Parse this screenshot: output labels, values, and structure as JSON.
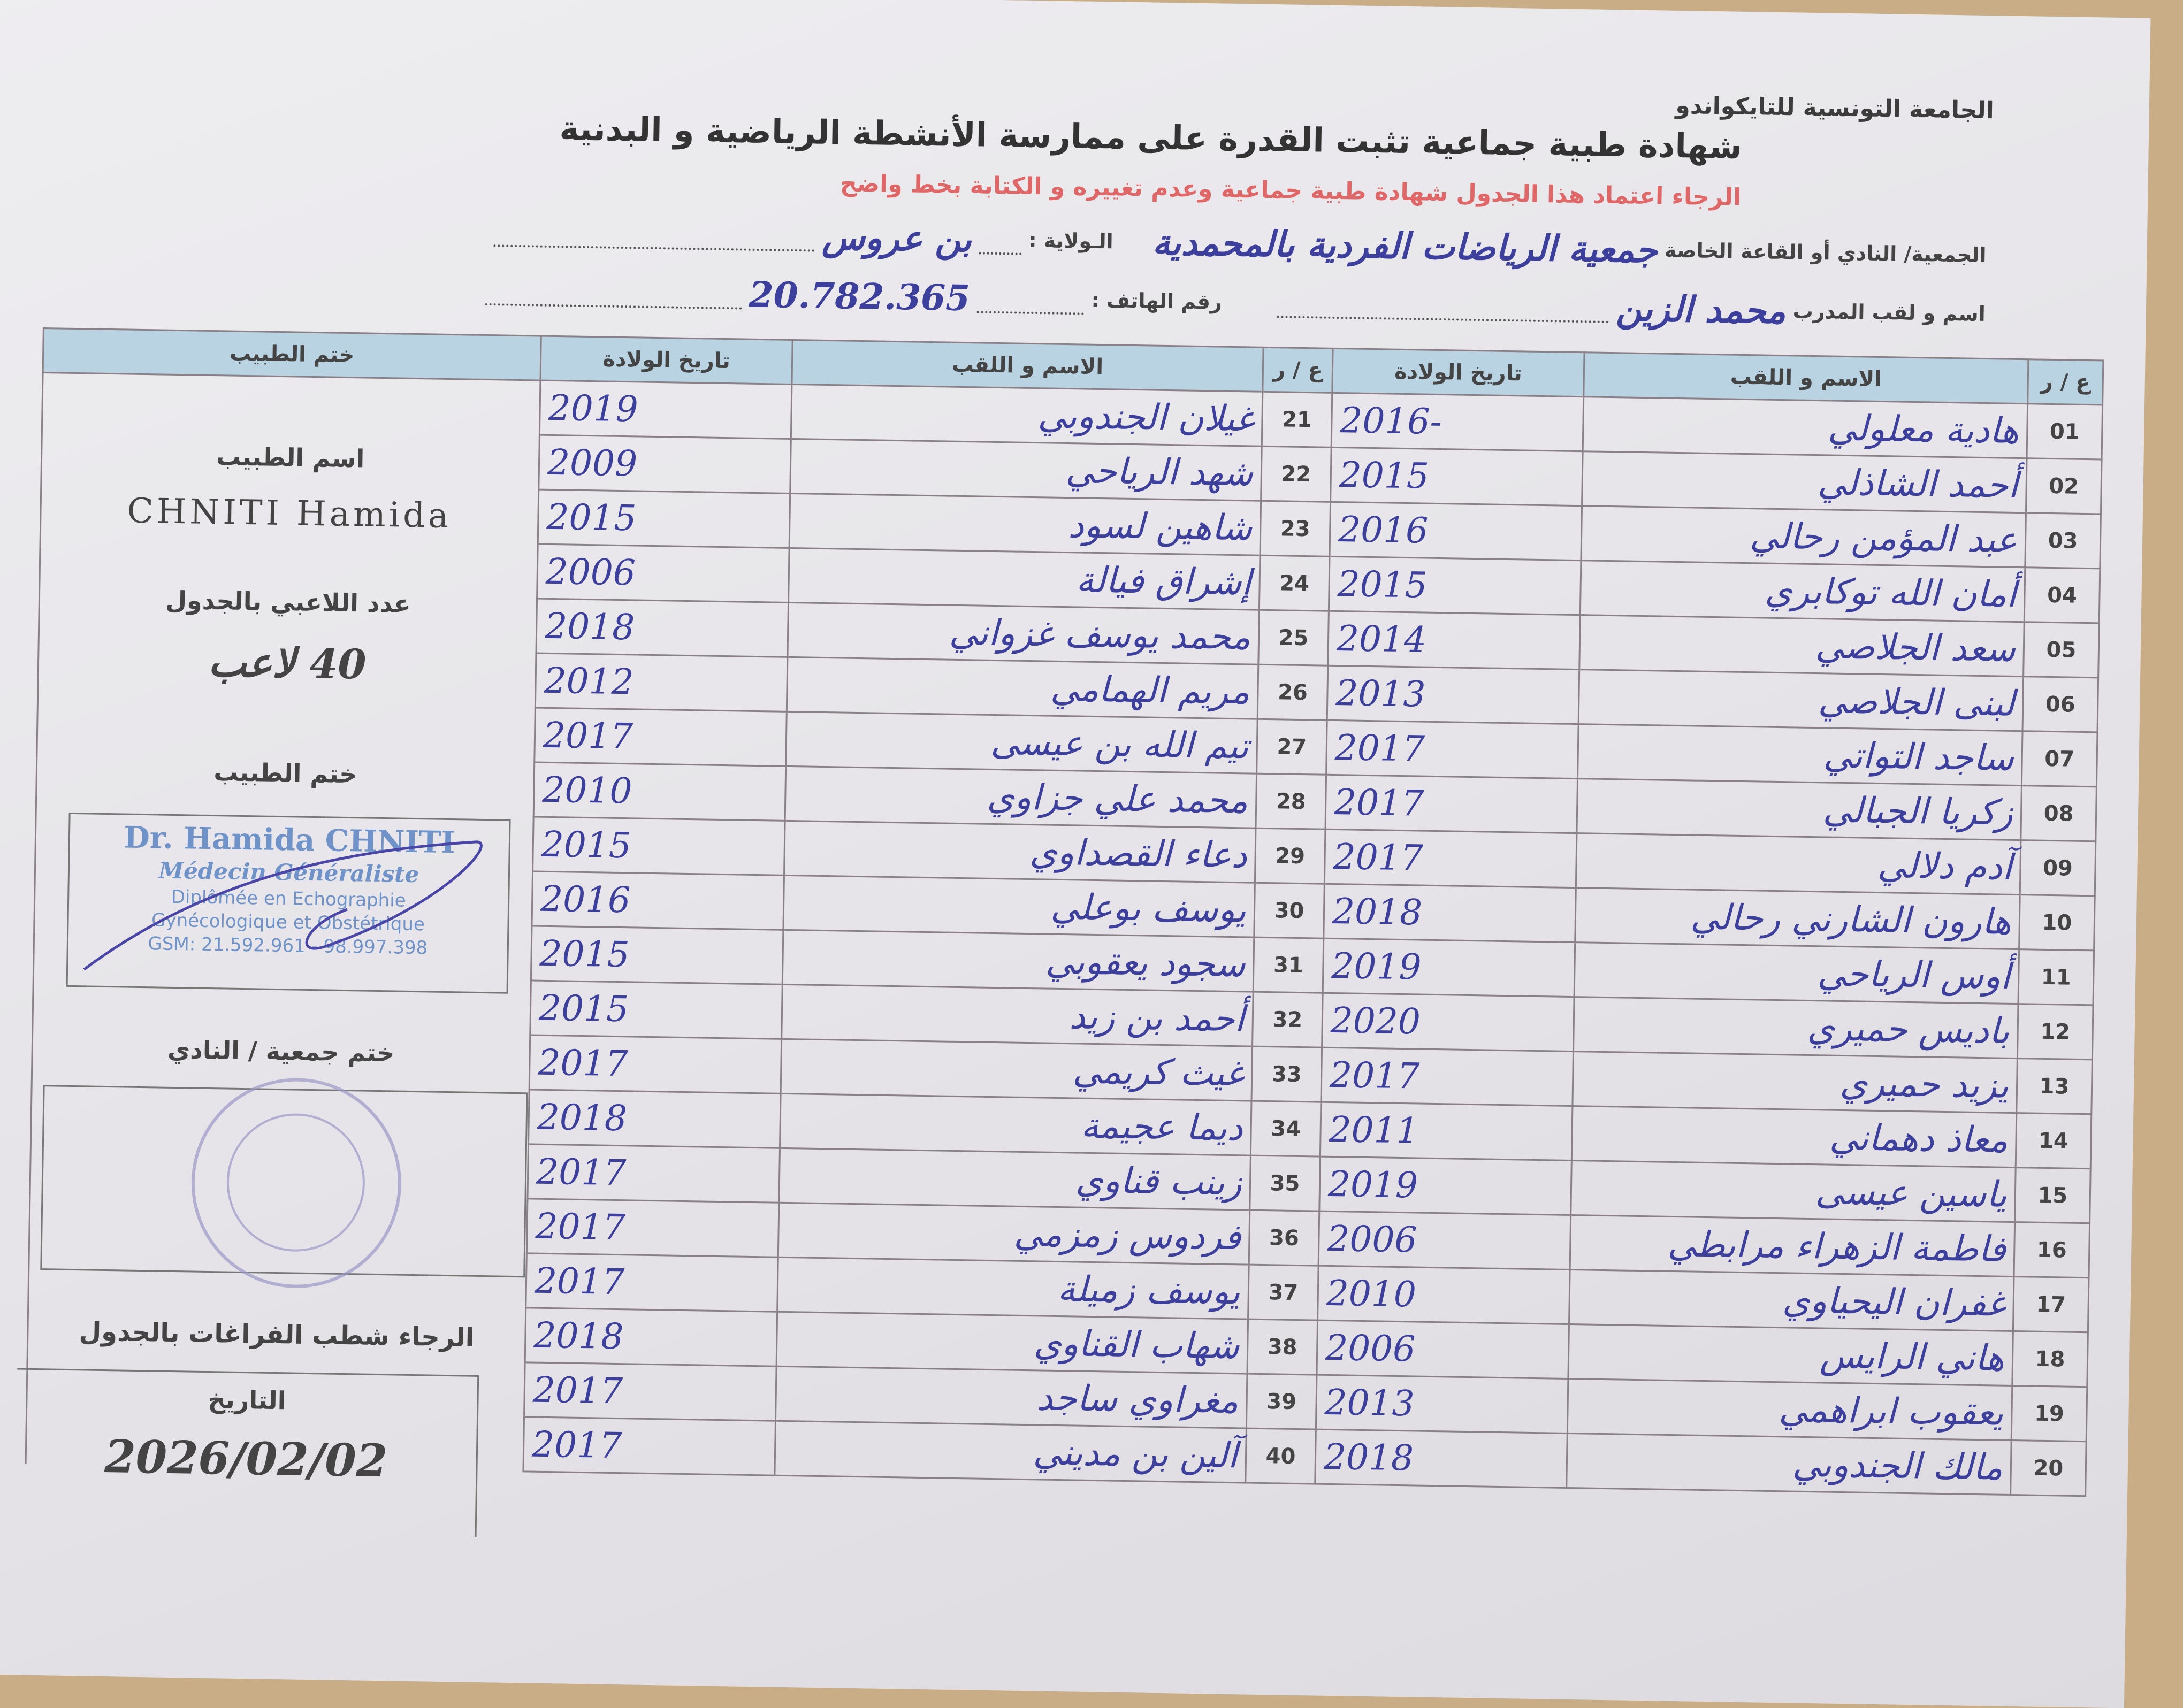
{
  "header": {
    "federation": "الجامعة التونسية للتايكواندو",
    "title": "شهادة طبية جماعية تثبت القدرة على ممارسة الأنشطة الرياضية و البدنية",
    "notice": "الرجاء اعتماد هذا الجدول شهادة طبية جماعية وعدم تغييره و الكتابة بخط واضح"
  },
  "info": {
    "club_label": "الجمعية/ النادي أو القاعة الخاصة",
    "club_value": "جمعية الرياضات الفردية بالمحمدية",
    "state_label": "الـولاية :",
    "state_value": "بن عروس",
    "coach_label": "اسم و لقب المدرب",
    "coach_value": "محمد الزين",
    "phone_label": "رقم الهاتف :",
    "phone_value": "20.782.365"
  },
  "table": {
    "col_num": "ع / ر",
    "col_name": "الاسم و اللقب",
    "col_birth": "تاريخ الولادة",
    "col_stamp": "ختم الطبيب",
    "right_rows": [
      {
        "num": "01",
        "name": "هادية معلولي",
        "year": "2016-"
      },
      {
        "num": "02",
        "name": "أحمد الشاذلي",
        "year": "2015"
      },
      {
        "num": "03",
        "name": "عبد المؤمن رحالي",
        "year": "2016"
      },
      {
        "num": "04",
        "name": "أمان الله توكابري",
        "year": "2015"
      },
      {
        "num": "05",
        "name": "سعد الجلاصي",
        "year": "2014"
      },
      {
        "num": "06",
        "name": "لبنى الجلاصي",
        "year": "2013"
      },
      {
        "num": "07",
        "name": "ساجد التواتي",
        "year": "2017"
      },
      {
        "num": "08",
        "name": "زكريا الجبالي",
        "year": "2017"
      },
      {
        "num": "09",
        "name": "آدم دلالي",
        "year": "2017"
      },
      {
        "num": "10",
        "name": "هارون الشارني رحالي",
        "year": "2018"
      },
      {
        "num": "11",
        "name": "أوس الرياحي",
        "year": "2019"
      },
      {
        "num": "12",
        "name": "باديس حميري",
        "year": "2020"
      },
      {
        "num": "13",
        "name": "يزيد حميري",
        "year": "2017"
      },
      {
        "num": "14",
        "name": "معاذ دهماني",
        "year": "2011"
      },
      {
        "num": "15",
        "name": "ياسين عيسى",
        "year": "2019"
      },
      {
        "num": "16",
        "name": "فاطمة الزهراء مرابطي",
        "year": "2006"
      },
      {
        "num": "17",
        "name": "غفران اليحياوي",
        "year": "2010"
      },
      {
        "num": "18",
        "name": "هاني الرايس",
        "year": "2006"
      },
      {
        "num": "19",
        "name": "يعقوب ابراهمي",
        "year": "2013"
      },
      {
        "num": "20",
        "name": "مالك الجندوبي",
        "year": "2018"
      }
    ],
    "left_rows": [
      {
        "num": "21",
        "name": "غيلان الجندوبي",
        "year": "2019"
      },
      {
        "num": "22",
        "name": "شهد الرياحي",
        "year": "2009"
      },
      {
        "num": "23",
        "name": "شاهين لسود",
        "year": "2015"
      },
      {
        "num": "24",
        "name": "إشراق فيالة",
        "year": "2006"
      },
      {
        "num": "25",
        "name": "محمد يوسف غزواني",
        "year": "2018"
      },
      {
        "num": "26",
        "name": "مريم الهمامي",
        "year": "2012"
      },
      {
        "num": "27",
        "name": "تيم الله بن عيسى",
        "year": "2017"
      },
      {
        "num": "28",
        "name": "محمد علي جزاوي",
        "year": "2010"
      },
      {
        "num": "29",
        "name": "دعاء القصداوي",
        "year": "2015"
      },
      {
        "num": "30",
        "name": "يوسف بوعلي",
        "year": "2016"
      },
      {
        "num": "31",
        "name": "سجود يعقوبي",
        "year": "2015"
      },
      {
        "num": "32",
        "name": "أحمد بن زيد",
        "year": "2015"
      },
      {
        "num": "33",
        "name": "غيث كريمي",
        "year": "2017"
      },
      {
        "num": "34",
        "name": "ديما عجيمة",
        "year": "2018"
      },
      {
        "num": "35",
        "name": "زينب قناوي",
        "year": "2017"
      },
      {
        "num": "36",
        "name": "فردوس زمزمي",
        "year": "2017"
      },
      {
        "num": "37",
        "name": "يوسف زميلة",
        "year": "2017"
      },
      {
        "num": "38",
        "name": "شهاب القناوي",
        "year": "2018"
      },
      {
        "num": "39",
        "name": "مغراوي ساجد",
        "year": "2017"
      },
      {
        "num": "40",
        "name": "آلين بن مديني",
        "year": "2017"
      }
    ]
  },
  "panel": {
    "doctor_name_label": "اسم الطبيب",
    "doctor_name_value": "CHNITI Hamida",
    "players_count_label": "عدد اللاعبي بالجدول",
    "players_count_value": "40 لاعب",
    "doctor_stamp_label": "ختم الطبيب",
    "stamp_lines": [
      "Dr. Hamida CHNITI",
      "Médecin Généraliste",
      "Diplômée en Echographie",
      "Gynécologique et Obstétrique",
      "GSM: 21.592.961 - 98.997.398"
    ],
    "club_stamp_label": "ختم جمعية / النادي",
    "strike_notice": "الرجاء شطب الفراغات بالجدول",
    "date_label": "التاريخ",
    "date_value": "2026/02/02"
  },
  "colors": {
    "ink": "#3d3f9c",
    "header_fill": "#b9d3e3",
    "notice": "#e06767",
    "stamp": "#6f92c8"
  }
}
